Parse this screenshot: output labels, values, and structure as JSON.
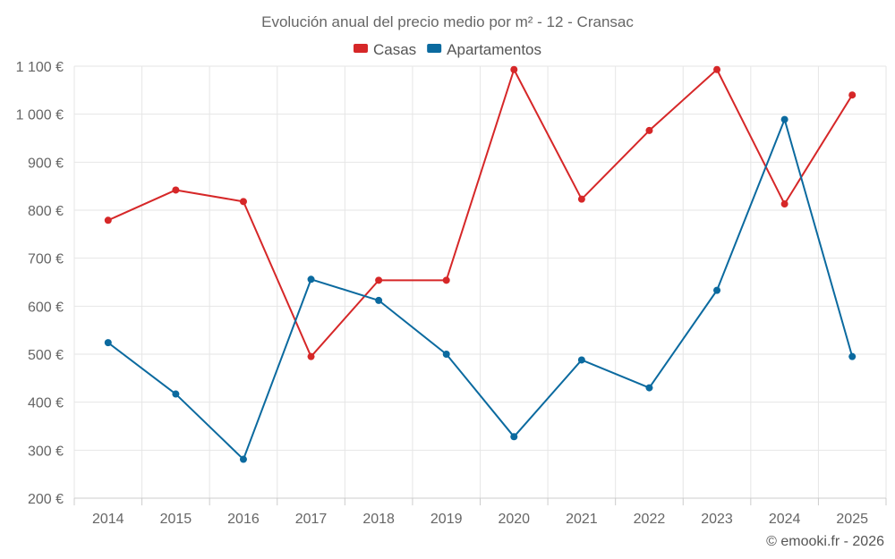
{
  "chart_data": {
    "type": "line",
    "title": "Evolución anual del precio medio por m² - 12 - Cransac",
    "categories": [
      "2014",
      "2015",
      "2016",
      "2017",
      "2018",
      "2019",
      "2020",
      "2021",
      "2022",
      "2023",
      "2024",
      "2025"
    ],
    "series": [
      {
        "name": "Casas",
        "color": "#d62728",
        "values": [
          779,
          842,
          818,
          495,
          654,
          654,
          1093,
          823,
          966,
          1093,
          813,
          1040
        ]
      },
      {
        "name": "Apartamentos",
        "color": "#0b6a9f",
        "values": [
          524,
          417,
          281,
          656,
          612,
          500,
          328,
          488,
          430,
          633,
          989,
          495
        ]
      }
    ],
    "ylim": [
      200,
      1100
    ],
    "yticks": [
      200,
      300,
      400,
      500,
      600,
      700,
      800,
      900,
      1000,
      1100
    ],
    "ytick_labels": [
      "200 €",
      "300 €",
      "400 €",
      "500 €",
      "600 €",
      "700 €",
      "800 €",
      "900 €",
      "1 000 €",
      "1 100 €"
    ],
    "xlabel": "",
    "ylabel": "",
    "grid": true,
    "legend_position": "top-center"
  },
  "credit": "© emooki.fr - 2026"
}
